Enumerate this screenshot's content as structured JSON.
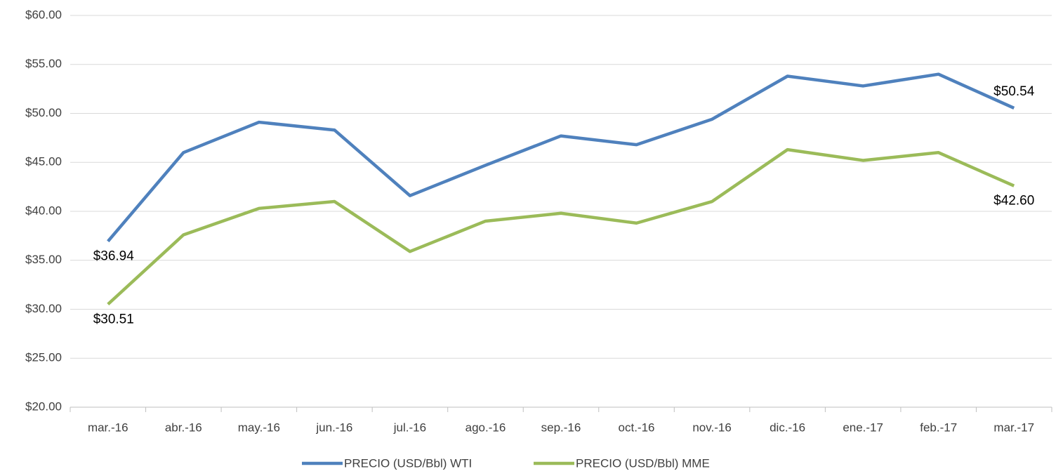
{
  "chart_data": {
    "type": "line",
    "categories": [
      "mar.-16",
      "abr.-16",
      "may.-16",
      "jun.-16",
      "jul.-16",
      "ago.-16",
      "sep.-16",
      "oct.-16",
      "nov.-16",
      "dic.-16",
      "ene.-17",
      "feb.-17",
      "mar.-17"
    ],
    "series": [
      {
        "name": "PRECIO (USD/Bbl) WTI",
        "color": "#4f81bd",
        "values": [
          36.94,
          46.0,
          49.1,
          48.3,
          41.6,
          44.7,
          47.7,
          46.8,
          49.4,
          53.8,
          52.8,
          54.0,
          50.54
        ],
        "value_labels": [
          "$36.94",
          null,
          null,
          null,
          null,
          null,
          null,
          null,
          null,
          null,
          null,
          null,
          "$50.54"
        ]
      },
      {
        "name": "PRECIO (USD/Bbl) MME",
        "color": "#9bbb59",
        "values": [
          30.51,
          37.6,
          40.3,
          41.0,
          35.9,
          39.0,
          39.8,
          38.8,
          41.0,
          46.3,
          45.2,
          46.0,
          42.6
        ],
        "value_labels": [
          "$30.51",
          null,
          null,
          null,
          null,
          null,
          null,
          null,
          null,
          null,
          null,
          null,
          "$42.60"
        ]
      }
    ],
    "ylim": [
      20,
      60
    ],
    "yticks": [
      {
        "value": 20,
        "label": "$20.00"
      },
      {
        "value": 25,
        "label": "$25.00"
      },
      {
        "value": 30,
        "label": "$30.00"
      },
      {
        "value": 35,
        "label": "$35.00"
      },
      {
        "value": 40,
        "label": "$40.00"
      },
      {
        "value": 45,
        "label": "$45.00"
      },
      {
        "value": 50,
        "label": "$50.00"
      },
      {
        "value": 55,
        "label": "$55.00"
      },
      {
        "value": 60,
        "label": "$60.00"
      }
    ],
    "grid": true,
    "legend": "bottom"
  }
}
